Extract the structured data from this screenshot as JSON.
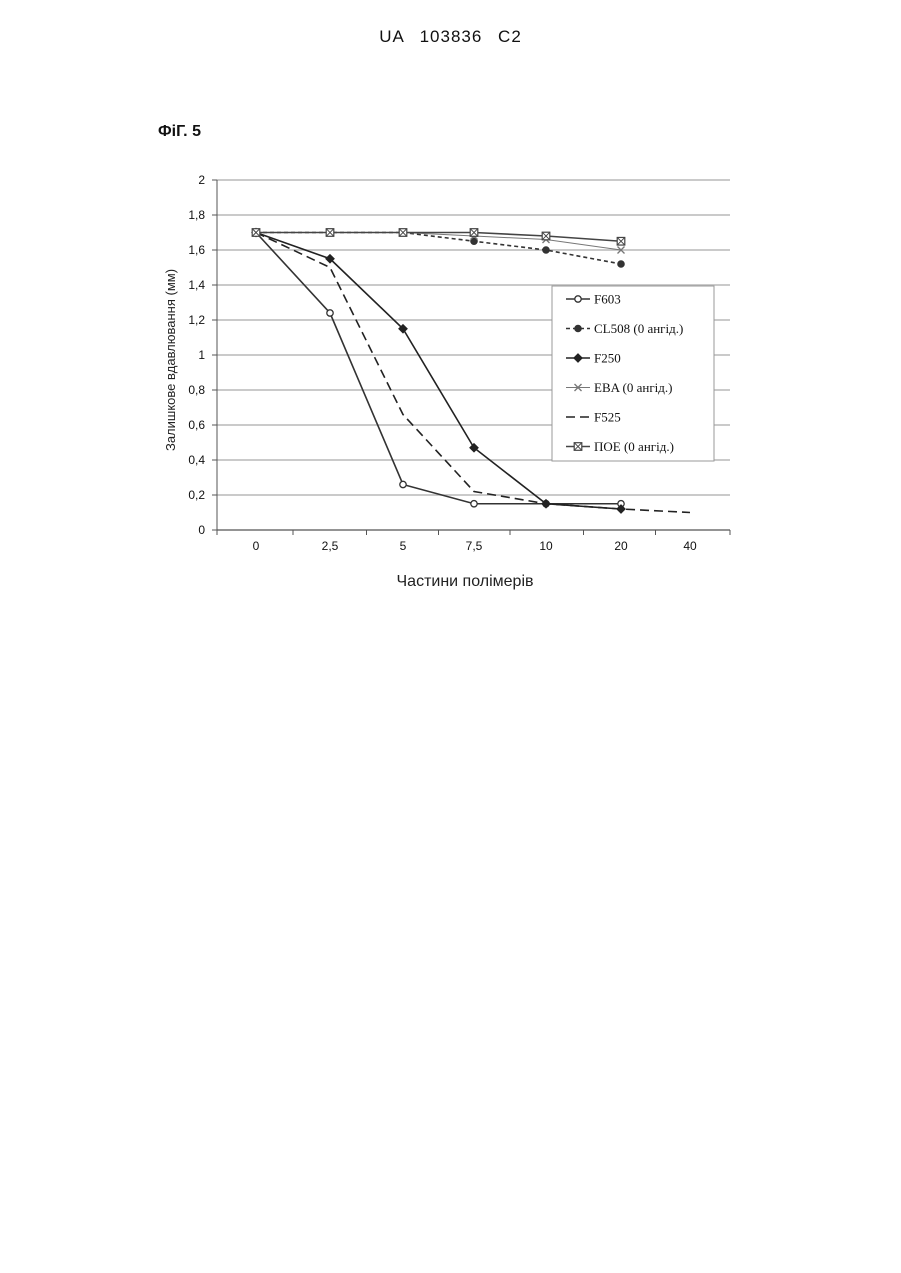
{
  "header": {
    "doc_id": "UA   103836   C2"
  },
  "figure_label": "ФіГ. 5",
  "chart_data": {
    "type": "line",
    "title": "",
    "xlabel": "Частини полімерів",
    "ylabel": "Залишкове вдавлювання (мм)",
    "categories": [
      "0",
      "2,5",
      "5",
      "7,5",
      "10",
      "20",
      "40"
    ],
    "yticks": [
      "0",
      "0,2",
      "0,4",
      "0,6",
      "0,8",
      "1",
      "1,2",
      "1,4",
      "1,6",
      "1,8",
      "2"
    ],
    "ylim": [
      0,
      2
    ],
    "grid": "horizontal",
    "legend_position": "right",
    "series": [
      {
        "name": "F603",
        "marker": "open-circle",
        "dash": "solid",
        "color": "#333333",
        "values": [
          1.7,
          1.24,
          0.26,
          0.15,
          0.15,
          0.15,
          null
        ]
      },
      {
        "name": "CL508 (0 ангід.)",
        "marker": "filled-circle",
        "dash": "dashed-short",
        "color": "#333333",
        "values": [
          1.7,
          1.7,
          1.7,
          1.65,
          1.6,
          1.52,
          null
        ]
      },
      {
        "name": "F250",
        "marker": "filled-diamond",
        "dash": "solid",
        "color": "#222222",
        "values": [
          1.7,
          1.55,
          1.15,
          0.47,
          0.15,
          0.12,
          null
        ]
      },
      {
        "name": "EBA (0 ангід.)",
        "marker": "cross",
        "dash": "solid",
        "color": "#777777",
        "values": [
          1.7,
          1.7,
          1.7,
          1.68,
          1.66,
          1.6,
          null
        ]
      },
      {
        "name": "F525",
        "marker": "none",
        "dash": "dashed-long",
        "color": "#222222",
        "values": [
          1.7,
          1.5,
          0.66,
          0.22,
          0.15,
          0.12,
          0.1
        ]
      },
      {
        "name": "ПОЕ (0 ангід.)",
        "marker": "boxed-x",
        "dash": "solid",
        "color": "#444444",
        "values": [
          1.7,
          1.7,
          1.7,
          1.7,
          1.68,
          1.65,
          null
        ]
      }
    ]
  }
}
